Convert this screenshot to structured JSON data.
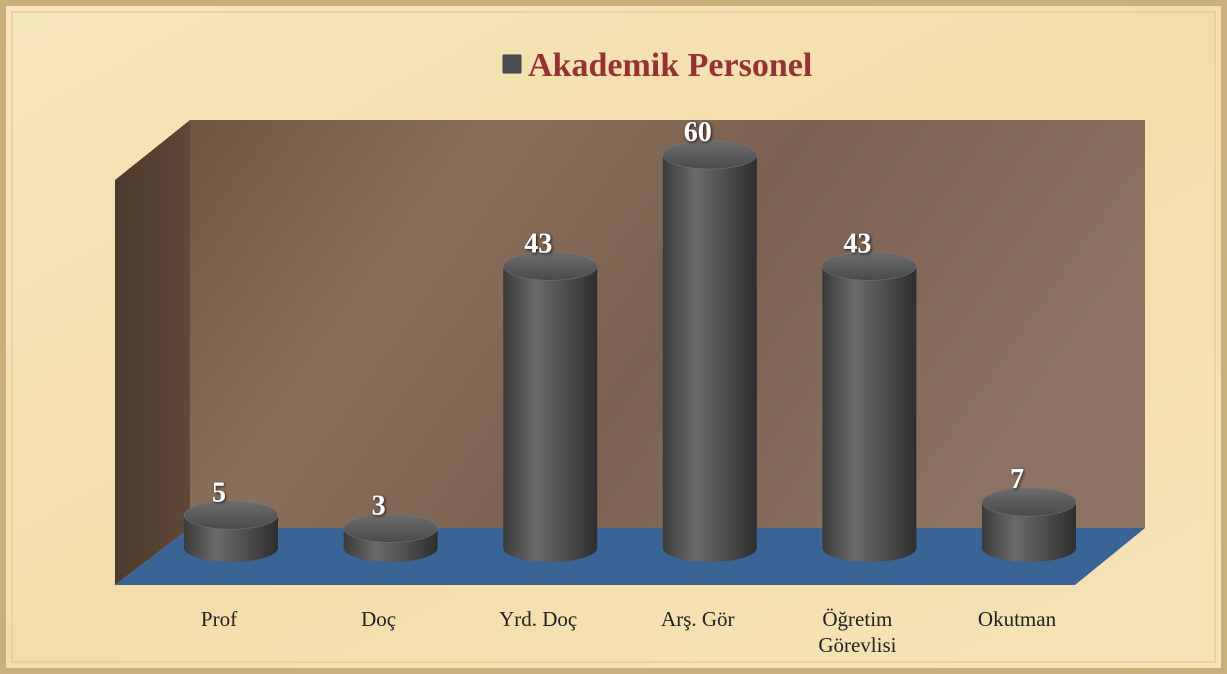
{
  "chart_data": {
    "type": "bar",
    "categories": [
      "Prof",
      "Doç",
      "Yrd. Doç",
      "Arş. Gör",
      "Öğretim Görevlisi",
      "Okutman"
    ],
    "series": [
      {
        "name": "Akademik Personel",
        "color": "#4f4f4f",
        "values": [
          5,
          3,
          43,
          60,
          43,
          7
        ]
      }
    ],
    "legend": "top"
  }
}
